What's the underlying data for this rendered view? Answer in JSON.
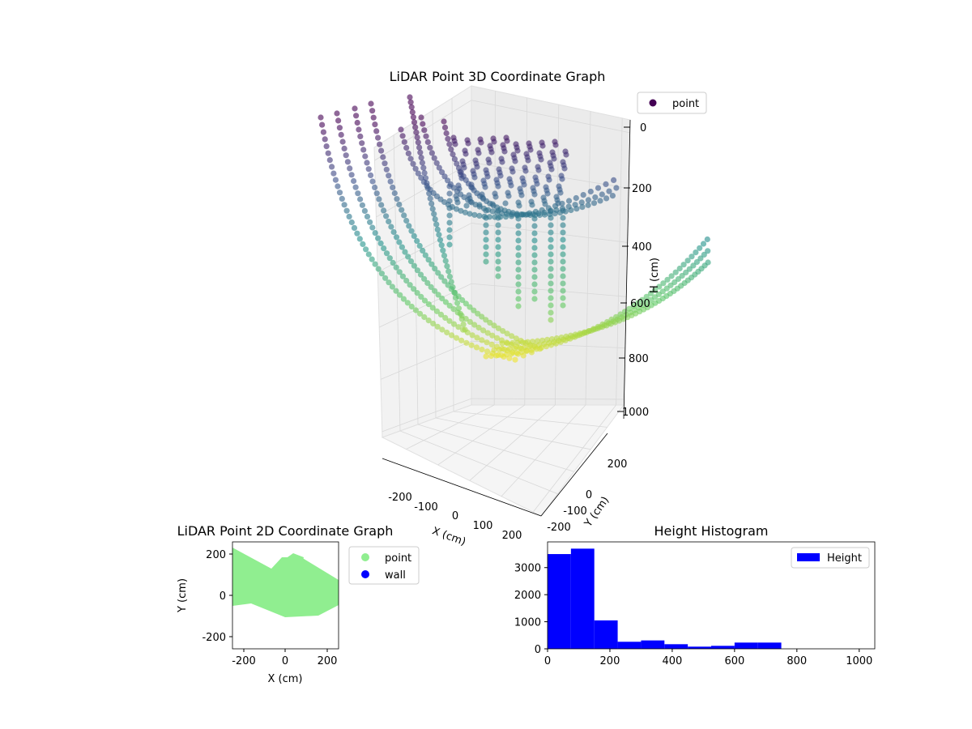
{
  "colors": {
    "viridis_dark": "#440154",
    "viridis_mid": "#21918c",
    "viridis_light": "#fde725",
    "point_2d": "#90ee90",
    "wall_2d": "#0000ff",
    "histogram": "#0000ff"
  },
  "chart_data": [
    {
      "type": "scatter",
      "projection": "3d",
      "title": "LiDAR Point 3D Coordinate Graph",
      "xlabel": "X (cm)",
      "ylabel": "Y (cm)",
      "zlabel": "H (cm)",
      "xticks": [
        "-200",
        "-100",
        "0",
        "100",
        "200"
      ],
      "yticks": [
        "-200",
        "-100",
        "0",
        "200"
      ],
      "zticks": [
        "0",
        "200",
        "400",
        "600",
        "800",
        "1000"
      ],
      "zlim": [
        0,
        1000
      ],
      "z_inverted": true,
      "colormap": "viridis",
      "legend": [
        "point"
      ],
      "legend_position": "upper-right",
      "series": [
        {
          "name": "point",
          "description_values": {
            "height_range": [
              0,
              820
            ]
          }
        }
      ]
    },
    {
      "type": "scatter",
      "title": "LiDAR Point 2D Coordinate Graph",
      "xlabel": "X (cm)",
      "ylabel": "Y (cm)",
      "xlim": [
        -250,
        250
      ],
      "ylim": [
        -250,
        250
      ],
      "xticks": [
        "-200",
        "0",
        "200"
      ],
      "yticks": [
        "200",
        "0",
        "-200"
      ],
      "legend": [
        "point",
        "wall"
      ],
      "legend_position": "outside-right"
    },
    {
      "type": "bar",
      "subtype": "histogram",
      "title": "Height Histogram",
      "xlim": [
        0,
        1050
      ],
      "ylim": [
        0,
        3950
      ],
      "xticks": [
        "0",
        "200",
        "400",
        "600",
        "800",
        "1000"
      ],
      "yticks": [
        "0",
        "1000",
        "2000",
        "3000"
      ],
      "legend": [
        "Height"
      ],
      "legend_position": "upper-right",
      "bins": [
        {
          "x0": 0,
          "x1": 75,
          "count": 3500
        },
        {
          "x0": 75,
          "x1": 150,
          "count": 3700
        },
        {
          "x0": 150,
          "x1": 225,
          "count": 1050
        },
        {
          "x0": 225,
          "x1": 300,
          "count": 260
        },
        {
          "x0": 300,
          "x1": 375,
          "count": 310
        },
        {
          "x0": 375,
          "x1": 450,
          "count": 170
        },
        {
          "x0": 450,
          "x1": 525,
          "count": 80
        },
        {
          "x0": 525,
          "x1": 600,
          "count": 110
        },
        {
          "x0": 600,
          "x1": 675,
          "count": 230
        },
        {
          "x0": 675,
          "x1": 750,
          "count": 230
        },
        {
          "x0": 750,
          "x1": 825,
          "count": 0
        },
        {
          "x0": 825,
          "x1": 900,
          "count": 0
        },
        {
          "x0": 900,
          "x1": 975,
          "count": 0
        },
        {
          "x0": 975,
          "x1": 1050,
          "count": 0
        }
      ]
    }
  ]
}
